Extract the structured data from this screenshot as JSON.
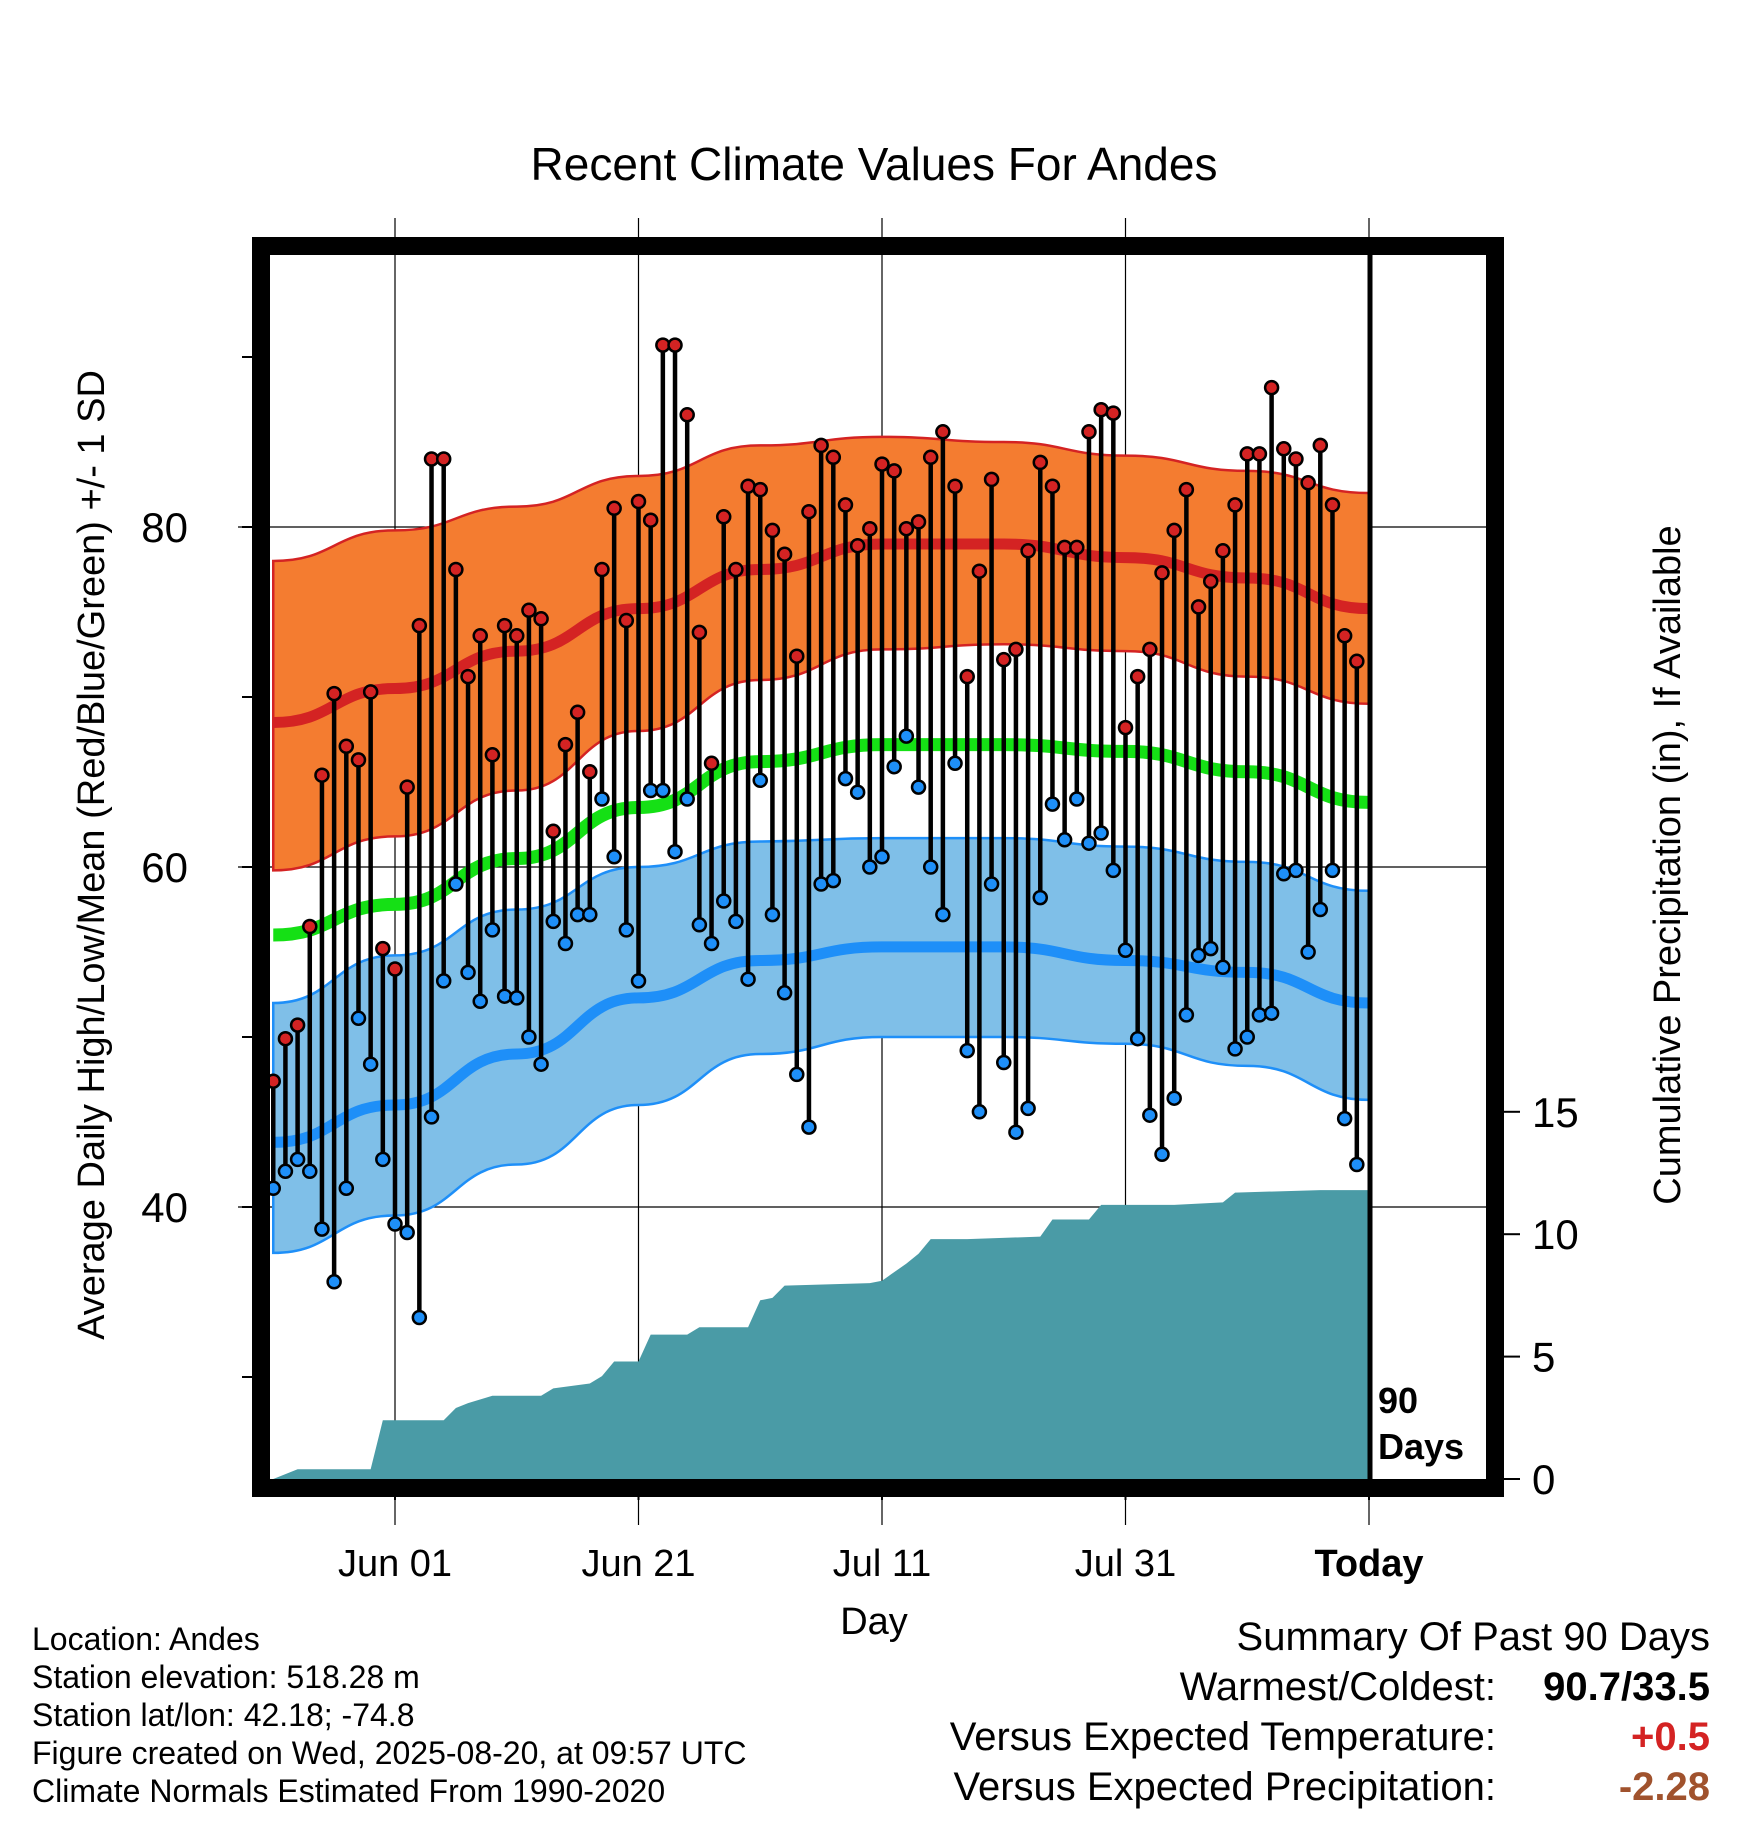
{
  "chart_data": {
    "type": "line",
    "title": "Recent Climate Values For Andes",
    "xlabel": "Day",
    "ylabel_left": "Average Daily High/Low/Mean (Red/Blue/Green) +/- 1 SD",
    "ylabel_right": "Cumulative Precipitation (in), If Available",
    "x_ticks": [
      "Jun 01",
      "Jun 21",
      "Jul 11",
      "Jul 31",
      "Today"
    ],
    "y_ticks_left": [
      40,
      60,
      80
    ],
    "y_ticks_right": [
      0,
      5,
      10,
      15
    ],
    "ylim_left": [
      24,
      96
    ],
    "ylim_right": [
      0,
      50
    ],
    "grid": true,
    "today_marker": {
      "label_line1": "90",
      "label_line2": "Days"
    },
    "colors": {
      "high_band": "#f47c30",
      "high_line": "#d42323",
      "mean_line": "#15e015",
      "low_band": "#7fbfe8",
      "low_line": "#1e8ff8",
      "precip_fill": "#4a9ba6",
      "high_dot": "#d42323",
      "low_dot": "#1e8ff8"
    },
    "normal_high": [
      [
        -10,
        68.5
      ],
      [
        0,
        70.5
      ],
      [
        10,
        72.7
      ],
      [
        20,
        75.2
      ],
      [
        30,
        77.5
      ],
      [
        40,
        79.0
      ],
      [
        50,
        79.0
      ],
      [
        60,
        78.2
      ],
      [
        70,
        77.0
      ],
      [
        80,
        75.2
      ]
    ],
    "normal_high_upper": [
      [
        -10,
        78.0
      ],
      [
        0,
        79.8
      ],
      [
        10,
        81.2
      ],
      [
        20,
        83.0
      ],
      [
        30,
        84.8
      ],
      [
        40,
        85.3
      ],
      [
        50,
        85.0
      ],
      [
        60,
        84.2
      ],
      [
        70,
        83.3
      ],
      [
        80,
        82.0
      ]
    ],
    "normal_high_lower": [
      [
        -10,
        59.8
      ],
      [
        0,
        61.8
      ],
      [
        10,
        64.5
      ],
      [
        20,
        68.0
      ],
      [
        30,
        71.0
      ],
      [
        40,
        72.8
      ],
      [
        50,
        73.1
      ],
      [
        60,
        72.7
      ],
      [
        70,
        71.2
      ],
      [
        80,
        69.6
      ]
    ],
    "normal_mean": [
      [
        -10,
        56.0
      ],
      [
        0,
        57.8
      ],
      [
        10,
        60.5
      ],
      [
        20,
        63.5
      ],
      [
        30,
        66.2
      ],
      [
        40,
        67.2
      ],
      [
        50,
        67.2
      ],
      [
        60,
        66.8
      ],
      [
        70,
        65.6
      ],
      [
        80,
        63.8
      ]
    ],
    "normal_low": [
      [
        -10,
        43.8
      ],
      [
        0,
        46.0
      ],
      [
        10,
        49.0
      ],
      [
        20,
        52.3
      ],
      [
        30,
        54.5
      ],
      [
        40,
        55.3
      ],
      [
        50,
        55.3
      ],
      [
        60,
        54.5
      ],
      [
        70,
        53.8
      ],
      [
        80,
        52.0
      ]
    ],
    "normal_low_upper": [
      [
        -10,
        52.0
      ],
      [
        0,
        54.8
      ],
      [
        10,
        57.5
      ],
      [
        20,
        60.0
      ],
      [
        30,
        61.5
      ],
      [
        40,
        61.7
      ],
      [
        50,
        61.7
      ],
      [
        60,
        61.2
      ],
      [
        70,
        60.3
      ],
      [
        80,
        58.6
      ]
    ],
    "normal_low_lower": [
      [
        -10,
        37.3
      ],
      [
        0,
        39.5
      ],
      [
        10,
        42.5
      ],
      [
        20,
        46.0
      ],
      [
        30,
        49.0
      ],
      [
        40,
        50.0
      ],
      [
        50,
        50.0
      ],
      [
        60,
        49.6
      ],
      [
        70,
        48.3
      ],
      [
        80,
        46.3
      ]
    ],
    "daily_high": [
      47.4,
      49.9,
      50.7,
      56.5,
      65.4,
      70.2,
      67.1,
      66.3,
      70.3,
      55.2,
      54.0,
      64.7,
      74.2,
      84.0,
      84.0,
      77.5,
      71.2,
      73.6,
      66.6,
      74.2,
      73.6,
      75.1,
      74.6,
      62.1,
      67.2,
      69.1,
      65.6,
      77.5,
      81.1,
      74.5,
      81.5,
      80.4,
      90.7,
      90.7,
      86.6,
      73.8,
      66.1,
      80.6,
      77.5,
      82.4,
      82.2,
      79.8,
      78.4,
      72.4,
      80.9,
      84.8,
      84.1,
      81.3,
      78.9,
      79.9,
      83.7,
      83.3,
      79.9,
      80.3,
      84.1,
      85.6,
      82.4,
      71.2,
      77.4,
      82.8,
      72.2,
      72.8,
      78.6,
      83.8,
      82.4,
      78.8,
      78.8,
      85.6,
      86.9,
      86.7,
      68.2,
      71.2,
      72.8,
      77.3,
      79.8,
      82.2,
      75.3,
      76.8,
      78.6,
      81.3,
      84.3,
      84.3,
      88.2,
      84.6,
      84.0,
      82.6,
      84.8,
      81.3,
      73.6,
      72.1
    ],
    "daily_low": [
      41.1,
      42.1,
      42.8,
      42.1,
      38.7,
      35.6,
      41.1,
      51.1,
      48.4,
      42.8,
      39.0,
      38.5,
      33.5,
      45.3,
      53.3,
      59.0,
      53.8,
      52.1,
      56.3,
      52.4,
      52.3,
      50.0,
      48.4,
      56.8,
      55.5,
      57.2,
      57.2,
      64.0,
      60.6,
      56.3,
      53.3,
      64.5,
      64.5,
      60.9,
      64.0,
      56.6,
      55.5,
      58.0,
      56.8,
      53.4,
      65.1,
      57.2,
      52.6,
      47.8,
      44.7,
      59.0,
      59.2,
      65.2,
      64.4,
      60.0,
      60.6,
      65.9,
      67.7,
      64.7,
      60.0,
      57.2,
      66.1,
      49.2,
      45.6,
      59.0,
      48.5,
      44.4,
      45.8,
      58.2,
      63.7,
      61.6,
      64.0,
      61.4,
      62.0,
      59.8,
      55.1,
      49.9,
      45.4,
      43.1,
      46.4,
      51.3,
      54.8,
      55.2,
      54.1,
      49.3,
      50.0,
      51.3,
      51.4,
      59.6,
      59.8,
      55.0,
      57.5,
      59.8,
      45.2,
      42.5
    ],
    "precip": [
      [
        -10,
        0.0
      ],
      [
        -8,
        0.4
      ],
      [
        -2,
        0.4
      ],
      [
        -1,
        2.4
      ],
      [
        4,
        2.4
      ],
      [
        5,
        2.9
      ],
      [
        6,
        3.1
      ],
      [
        8,
        3.4
      ],
      [
        12,
        3.4
      ],
      [
        13,
        3.7
      ],
      [
        16,
        3.9
      ],
      [
        17,
        4.2
      ],
      [
        18,
        4.8
      ],
      [
        20,
        4.8
      ],
      [
        21,
        5.9
      ],
      [
        24,
        5.9
      ],
      [
        25,
        6.2
      ],
      [
        29,
        6.2
      ],
      [
        30,
        7.3
      ],
      [
        31,
        7.4
      ],
      [
        32,
        7.9
      ],
      [
        39,
        8.0
      ],
      [
        40,
        8.1
      ],
      [
        42,
        8.8
      ],
      [
        43,
        9.2
      ],
      [
        44,
        9.8
      ],
      [
        47,
        9.8
      ],
      [
        53,
        9.9
      ],
      [
        54,
        10.6
      ],
      [
        57,
        10.6
      ],
      [
        58,
        11.2
      ],
      [
        64,
        11.2
      ],
      [
        68,
        11.3
      ],
      [
        69,
        11.7
      ],
      [
        76,
        11.8
      ],
      [
        80,
        11.8
      ]
    ],
    "summary": {
      "heading": "Summary Of Past 90 Days",
      "warmest_coldest_label": "Warmest/Coldest:",
      "warmest_coldest_value": "90.7/33.5",
      "temp_label": "Versus Expected Temperature:",
      "temp_value": "+0.5",
      "temp_color": "#d42323",
      "precip_label": "Versus Expected Precipitation:",
      "precip_value": "-2.28",
      "precip_color": "#a0522d"
    }
  },
  "footer": {
    "location": "Location: Andes",
    "elevation": "Station elevation: 518.28 m",
    "latlon": "Station lat/lon: 42.18; -74.8",
    "created": "Figure created on Wed, 2025-08-20, at 09:57 UTC",
    "normals": "Climate Normals Estimated From 1990-2020"
  }
}
